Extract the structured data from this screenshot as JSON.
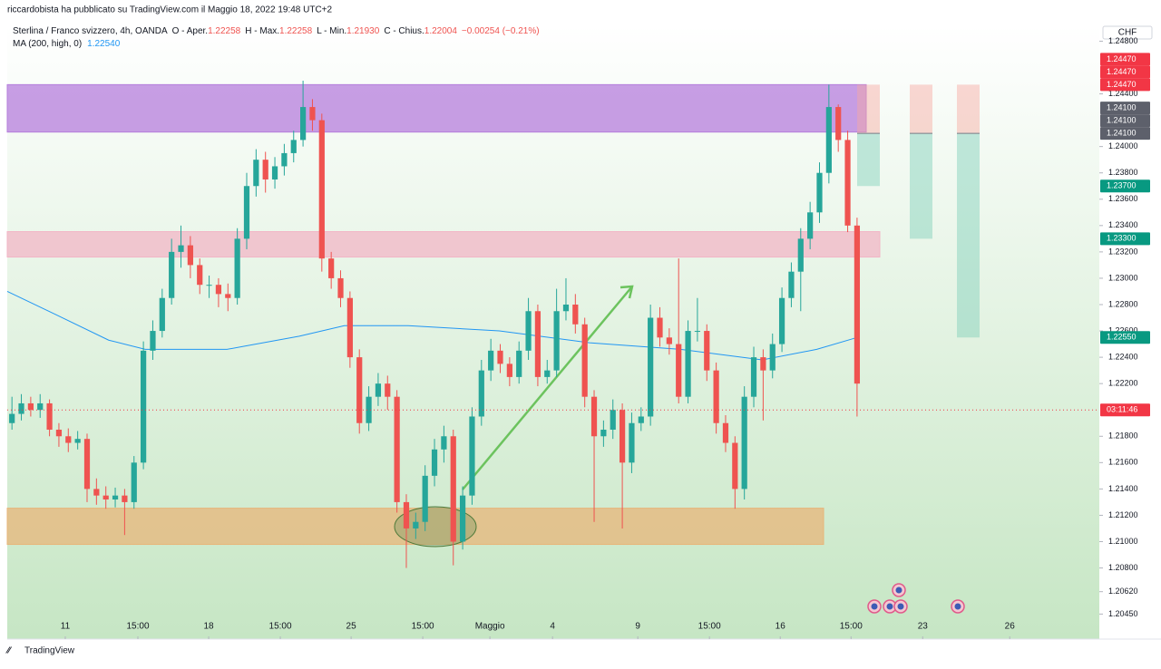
{
  "chart_data": {
    "type": "candlestick",
    "published": "riccardobista ha pubblicato su TradingView.com il Maggio 18, 2022 19:48 UTC+2",
    "symbol": "Sterlina / Franco svizzero, 4h, OANDA",
    "ohlc_legend": [
      {
        "label": "O - Aper.",
        "value": "1.22258"
      },
      {
        "label": "H - Max.",
        "value": "1.22258"
      },
      {
        "label": "L - Min.",
        "value": "1.21930"
      },
      {
        "label": "C - Chius.",
        "value": "1.22004"
      }
    ],
    "change": "−0.00254 (−0.21%)",
    "currency": "CHF",
    "footer": "TradingView",
    "up_color": "#26a69a",
    "down_color": "#ef5350",
    "ylim": [
      1.2026,
      1.2492
    ],
    "xlim": [
      0,
      116.3
    ],
    "yticks": [
      {
        "value": 1.248,
        "label": "1.24800"
      },
      {
        "value": 1.244,
        "label": "1.24400"
      },
      {
        "value": 1.24,
        "label": "1.24000"
      },
      {
        "value": 1.238,
        "label": "1.23800"
      },
      {
        "value": 1.236,
        "label": "1.23600"
      },
      {
        "value": 1.234,
        "label": "1.23400"
      },
      {
        "value": 1.232,
        "label": "1.23200"
      },
      {
        "value": 1.23,
        "label": "1.23000"
      },
      {
        "value": 1.228,
        "label": "1.22800"
      },
      {
        "value": 1.226,
        "label": "1.22600"
      },
      {
        "value": 1.224,
        "label": "1.22400"
      },
      {
        "value": 1.222,
        "label": "1.22200"
      },
      {
        "value": 1.218,
        "label": "1.21800"
      },
      {
        "value": 1.216,
        "label": "1.21600"
      },
      {
        "value": 1.214,
        "label": "1.21400"
      },
      {
        "value": 1.212,
        "label": "1.21200"
      },
      {
        "value": 1.21,
        "label": "1.21000"
      },
      {
        "value": 1.208,
        "label": "1.20800"
      },
      {
        "value": 1.2062,
        "label": "1.20620"
      },
      {
        "value": 1.2045,
        "label": "1.20450"
      }
    ],
    "xticks": [
      {
        "value": 6.18,
        "label": "11"
      },
      {
        "value": 13.91,
        "label": "15:00"
      },
      {
        "value": 21.45,
        "label": "18"
      },
      {
        "value": 29.08,
        "label": "15:00"
      },
      {
        "value": 36.62,
        "label": "25"
      },
      {
        "value": 44.25,
        "label": "15:00"
      },
      {
        "value": 51.4,
        "label": "Maggio"
      },
      {
        "value": 58.07,
        "label": "4"
      },
      {
        "value": 67.15,
        "label": "9"
      },
      {
        "value": 74.78,
        "label": "15:00"
      },
      {
        "value": 82.32,
        "label": "16"
      },
      {
        "value": 89.86,
        "label": "15:00"
      },
      {
        "value": 97.49,
        "label": "23"
      },
      {
        "value": 106.76,
        "label": "26"
      }
    ],
    "price_labels": [
      {
        "value": 1.2447,
        "label": "1.24470",
        "color": "#f23645"
      },
      {
        "value": 1.2447,
        "label": "1.24470",
        "color": "#f23645"
      },
      {
        "value": 1.2447,
        "label": "1.24470",
        "color": "#f23645"
      },
      {
        "value": 1.241,
        "label": "1.24100",
        "color": "#5d606b"
      },
      {
        "value": 1.241,
        "label": "1.24100",
        "color": "#5d606b"
      },
      {
        "value": 1.241,
        "label": "1.24100",
        "color": "#5d606b"
      },
      {
        "value": 1.237,
        "label": "1.23700",
        "color": "#089981"
      },
      {
        "value": 1.233,
        "label": "1.23300",
        "color": "#089981"
      },
      {
        "value": 1.2255,
        "label": "1.22550",
        "color": "#089981"
      },
      {
        "value": 1.22,
        "label": "03:11:46",
        "color": "#f23645"
      }
    ],
    "ma": {
      "name": "MA (200, high, 0)",
      "last": "1.22540",
      "color": "#2196f3",
      "x": [
        0,
        5.0,
        10.8,
        14.7,
        23.4,
        31.1,
        35.9,
        42.7,
        52.4,
        62.0,
        71.7,
        80.4,
        86.2,
        90.5
      ],
      "values": [
        1.229,
        1.2273,
        1.2253,
        1.2246,
        1.2246,
        1.2256,
        1.2264,
        1.2264,
        1.226,
        1.2251,
        1.2246,
        1.2238,
        1.2246,
        1.2255
      ]
    },
    "zones": [
      {
        "from": 1.2447,
        "to": 1.2411,
        "color": "#b57edc"
      },
      {
        "from": 1.23354,
        "to": 1.23161,
        "color": "#f2b6c6"
      },
      {
        "from": 1.21254,
        "to": 1.20979,
        "color": "#e7b57a"
      }
    ],
    "positions": [
      {
        "stop": 1.2447,
        "entry": 1.241,
        "target": 1.237
      },
      {
        "stop": 1.2447,
        "entry": 1.241,
        "target": 1.233
      },
      {
        "stop": 1.2447,
        "entry": 1.241,
        "target": 1.2255
      }
    ],
    "candles": [
      [
        1.219,
        1.221,
        1.2185,
        1.2197
      ],
      [
        1.2197,
        1.2212,
        1.2192,
        1.2205
      ],
      [
        1.2205,
        1.221,
        1.2195,
        1.22
      ],
      [
        1.22,
        1.2212,
        1.2194,
        1.2205
      ],
      [
        1.2205,
        1.2208,
        1.218,
        1.2185
      ],
      [
        1.2185,
        1.219,
        1.2172,
        1.218
      ],
      [
        1.218,
        1.2186,
        1.2168,
        1.2175
      ],
      [
        1.2175,
        1.2184,
        1.217,
        1.2178
      ],
      [
        1.2178,
        1.2182,
        1.213,
        1.214
      ],
      [
        1.214,
        1.2148,
        1.2128,
        1.2135
      ],
      [
        1.2135,
        1.2142,
        1.2125,
        1.2132
      ],
      [
        1.2132,
        1.2141,
        1.2126,
        1.2135
      ],
      [
        1.2135,
        1.214,
        1.2105,
        1.213
      ],
      [
        1.213,
        1.2165,
        1.2125,
        1.216
      ],
      [
        1.216,
        1.2252,
        1.2155,
        1.2245
      ],
      [
        1.2245,
        1.2268,
        1.2238,
        1.226
      ],
      [
        1.226,
        1.2292,
        1.2255,
        1.2285
      ],
      [
        1.2285,
        1.233,
        1.228,
        1.232
      ],
      [
        1.232,
        1.234,
        1.2308,
        1.2325
      ],
      [
        1.2325,
        1.2332,
        1.23,
        1.231
      ],
      [
        1.231,
        1.2315,
        1.2288,
        1.2295
      ],
      [
        1.2295,
        1.2302,
        1.2285,
        1.2295
      ],
      [
        1.2295,
        1.23,
        1.2278,
        1.2288
      ],
      [
        1.2288,
        1.2296,
        1.2275,
        1.2285
      ],
      [
        1.2285,
        1.2338,
        1.228,
        1.233
      ],
      [
        1.233,
        1.238,
        1.2322,
        1.237
      ],
      [
        1.237,
        1.2398,
        1.2362,
        1.239
      ],
      [
        1.239,
        1.2396,
        1.2365,
        1.2375
      ],
      [
        1.2375,
        1.2392,
        1.2368,
        1.2385
      ],
      [
        1.2385,
        1.2402,
        1.2378,
        1.2395
      ],
      [
        1.2395,
        1.2412,
        1.2388,
        1.2405
      ],
      [
        1.2405,
        1.245,
        1.24,
        1.243
      ],
      [
        1.243,
        1.2436,
        1.2412,
        1.242
      ],
      [
        1.242,
        1.2425,
        1.2305,
        1.2315
      ],
      [
        1.2315,
        1.232,
        1.2292,
        1.23
      ],
      [
        1.23,
        1.2306,
        1.2278,
        1.2285
      ],
      [
        1.2285,
        1.229,
        1.2232,
        1.224
      ],
      [
        1.224,
        1.2246,
        1.2182,
        1.219
      ],
      [
        1.219,
        1.2218,
        1.2184,
        1.221
      ],
      [
        1.221,
        1.2228,
        1.2203,
        1.222
      ],
      [
        1.222,
        1.2226,
        1.22,
        1.221
      ],
      [
        1.221,
        1.2215,
        1.2122,
        1.213
      ],
      [
        1.213,
        1.2136,
        1.208,
        1.211
      ],
      [
        1.211,
        1.2122,
        1.2102,
        1.2115
      ],
      [
        1.2115,
        1.2158,
        1.2108,
        1.215
      ],
      [
        1.215,
        1.2178,
        1.2142,
        1.217
      ],
      [
        1.217,
        1.2188,
        1.216,
        1.218
      ],
      [
        1.218,
        1.2185,
        1.2082,
        1.21
      ],
      [
        1.21,
        1.2142,
        1.2094,
        1.2135
      ],
      [
        1.2135,
        1.2202,
        1.2128,
        1.2195
      ],
      [
        1.2195,
        1.2238,
        1.2188,
        1.223
      ],
      [
        1.223,
        1.2254,
        1.2222,
        1.2245
      ],
      [
        1.2245,
        1.225,
        1.2228,
        1.2235
      ],
      [
        1.2235,
        1.224,
        1.2218,
        1.2225
      ],
      [
        1.2225,
        1.2252,
        1.222,
        1.2245
      ],
      [
        1.2245,
        1.2285,
        1.2238,
        1.2275
      ],
      [
        1.2275,
        1.228,
        1.2218,
        1.2225
      ],
      [
        1.2225,
        1.2238,
        1.222,
        1.223
      ],
      [
        1.223,
        1.2292,
        1.2225,
        1.2275
      ],
      [
        1.2275,
        1.23,
        1.2268,
        1.228
      ],
      [
        1.228,
        1.2288,
        1.2258,
        1.2265
      ],
      [
        1.2265,
        1.227,
        1.2202,
        1.221
      ],
      [
        1.221,
        1.2215,
        1.2115,
        1.218
      ],
      [
        1.218,
        1.2192,
        1.2172,
        1.2185
      ],
      [
        1.2185,
        1.2208,
        1.2178,
        1.22
      ],
      [
        1.22,
        1.2205,
        1.211,
        1.216
      ],
      [
        1.216,
        1.2198,
        1.2152,
        1.219
      ],
      [
        1.219,
        1.2202,
        1.2184,
        1.2195
      ],
      [
        1.2195,
        1.228,
        1.2188,
        1.227
      ],
      [
        1.227,
        1.2278,
        1.2248,
        1.2255
      ],
      [
        1.2255,
        1.2262,
        1.2242,
        1.225
      ],
      [
        1.225,
        1.2315,
        1.2205,
        1.221
      ],
      [
        1.221,
        1.2268,
        1.2205,
        1.226
      ],
      [
        1.226,
        1.2285,
        1.2252,
        1.226
      ],
      [
        1.226,
        1.2265,
        1.2222,
        1.223
      ],
      [
        1.223,
        1.2236,
        1.2182,
        1.219
      ],
      [
        1.219,
        1.2196,
        1.2168,
        1.2175
      ],
      [
        1.2175,
        1.218,
        1.2125,
        1.214
      ],
      [
        1.214,
        1.2218,
        1.2132,
        1.221
      ],
      [
        1.221,
        1.2248,
        1.2202,
        1.224
      ],
      [
        1.224,
        1.2246,
        1.2192,
        1.223
      ],
      [
        1.223,
        1.2258,
        1.2224,
        1.225
      ],
      [
        1.225,
        1.2293,
        1.2244,
        1.2285
      ],
      [
        1.2285,
        1.2312,
        1.2278,
        1.2305
      ],
      [
        1.2305,
        1.2338,
        1.2275,
        1.233
      ],
      [
        1.233,
        1.2358,
        1.2322,
        1.235
      ],
      [
        1.235,
        1.2388,
        1.2342,
        1.238
      ],
      [
        1.238,
        1.2447,
        1.2372,
        1.243
      ],
      [
        1.243,
        1.2432,
        1.2396,
        1.2405
      ],
      [
        1.2405,
        1.2412,
        1.2335,
        1.234
      ],
      [
        1.234,
        1.2346,
        1.2195,
        1.222
      ]
    ]
  }
}
